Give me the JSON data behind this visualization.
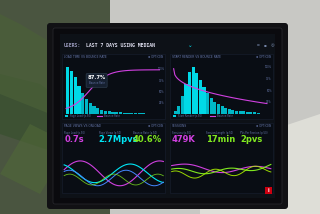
{
  "outer_bg_left": "#4a5a3a",
  "outer_bg_right": "#d8d8d0",
  "laptop_frame": "#1a1a1a",
  "screen_bg": "#0d1117",
  "panel_dark": "#0a0e16",
  "accent_cyan": "#00e8f8",
  "accent_pink": "#d040e0",
  "accent_green": "#80e820",
  "accent_blue": "#4488ff",
  "accent_yellow": "#e8e040",
  "text_dim": "#6677aa",
  "text_bright": "#aabbcc",
  "title_white": "#ddddee",
  "bar_cyan": "#00ccdd",
  "bar_cyan_bright": "#00f0ff",
  "chart1_label": "LOAD TIME VS BOUNCE RATE",
  "chart2_label": "START RENDER VS BOUNCE RATE",
  "chart3_label": "PAGE VIEWS VS ONLOAD",
  "chart4_label": "SESSIONS",
  "title_text": "USERS:",
  "title_sub": "LAST 7 DAYS USING MEDIAN",
  "stat_left": [
    {
      "label": "Page Load (p.50)",
      "value": "0.7s",
      "color": "#d040e0"
    },
    {
      "label": "Page Views (p.50)",
      "value": "2.7Mpvs",
      "color": "#00e8f8"
    },
    {
      "label": "Bounce Rate (p.50)",
      "value": "40.6%",
      "color": "#80e820"
    }
  ],
  "stat_right": [
    {
      "label": "Sessions (p.50)",
      "value": "479K",
      "color": "#d040e0"
    },
    {
      "label": "Session Length (p.50)",
      "value": "17min",
      "color": "#80e820"
    },
    {
      "label": "PVs Per Session (p.50)",
      "value": "2pvs",
      "color": "#80e820"
    }
  ]
}
